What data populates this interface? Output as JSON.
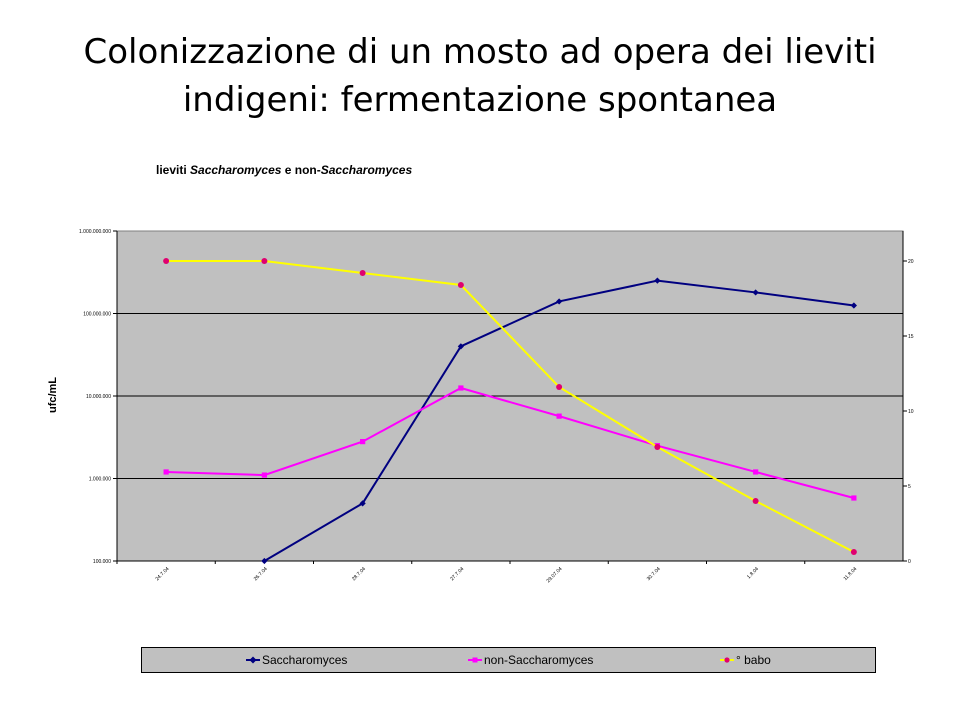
{
  "slide": {
    "title_line1": "Colonizzazione di un mosto ad opera dei lieviti",
    "title_line2": "indigeni: fermentazione spontanea"
  },
  "chart_data": {
    "type": "line",
    "title_prefix": "lieviti ",
    "title_italic1": "Saccharomyces",
    "title_middle": " e non-",
    "title_italic2": "Saccharomyces",
    "ylabel": "ufc/mL",
    "y_scale": "log",
    "ylim": [
      100000,
      1000000000
    ],
    "y_ticks": [
      "100.000",
      "1.000.000",
      "10.000.000",
      "100.000.000",
      "1.000.000.000"
    ],
    "y2lim": [
      0,
      22
    ],
    "y2_ticks": [
      "0",
      "5",
      "10",
      "15",
      "20"
    ],
    "categories": [
      "24.7.04",
      "26.7.04",
      "28.7.04",
      "27.7.04",
      "29.07.04",
      "30.7.04",
      "1.8.04",
      "11.8.04"
    ],
    "grid": true,
    "legend_position": "bottom",
    "background": "#c0c0c0",
    "series": [
      {
        "name": "Saccharomyces",
        "axis": "left",
        "color": "#000080",
        "marker": "diamond",
        "values": [
          null,
          100000,
          500000,
          40000000,
          140000000,
          250000000,
          180000000,
          125000000
        ]
      },
      {
        "name": "non-Saccharomyces",
        "axis": "left",
        "color": "#ff00ff",
        "marker": "square",
        "values": [
          1200000,
          1100000,
          2800000,
          12500000,
          5700000,
          2500000,
          1200000,
          580000
        ]
      },
      {
        "name": "° babo",
        "axis": "right",
        "color": "#ffff00",
        "marker_color": "#e0006f",
        "marker": "circle",
        "values": [
          20,
          20,
          19.2,
          18.4,
          11.6,
          7.6,
          4,
          0.6
        ]
      }
    ]
  }
}
